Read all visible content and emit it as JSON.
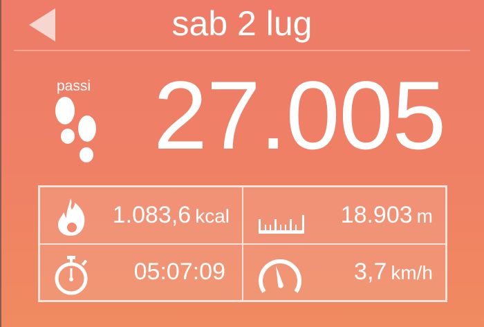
{
  "header": {
    "title": "sab 2 lug",
    "back_icon": "back-triangle-icon"
  },
  "steps": {
    "label": "passi",
    "value": "27.005",
    "icon": "footprints-icon"
  },
  "stats": [
    {
      "icon": "flame-icon",
      "value": "1.083,6",
      "unit": "kcal"
    },
    {
      "icon": "ruler-icon",
      "value": "18.903",
      "unit": "m"
    },
    {
      "icon": "stopwatch-icon",
      "value": "05:07:09",
      "unit": ""
    },
    {
      "icon": "speedometer-icon",
      "value": "3,7",
      "unit": "km/h"
    }
  ],
  "colors": {
    "background": "#ef7e66",
    "accent": "#ffffff"
  }
}
